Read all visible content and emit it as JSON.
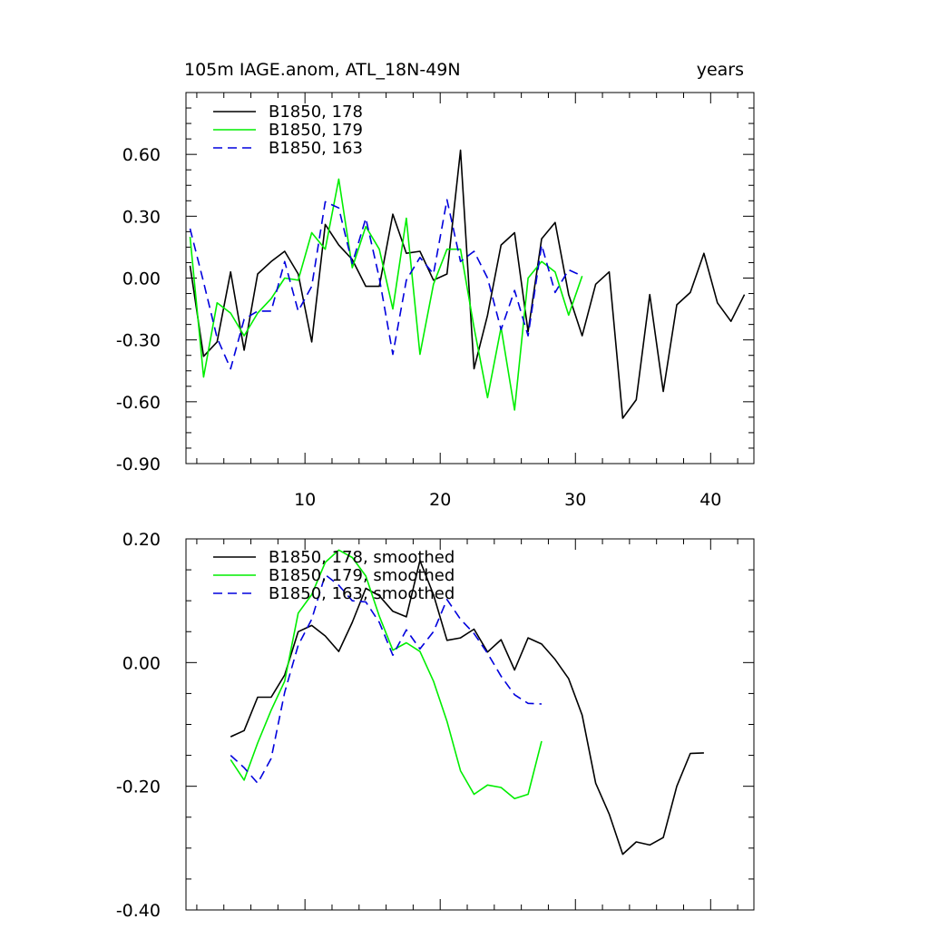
{
  "figure": {
    "title_left": "105m IAGE.anom, ATL_18N-49N",
    "title_right": "years"
  },
  "chart_data": [
    {
      "type": "line",
      "title": "105m IAGE.anom, ATL_18N-49N",
      "units_label": "years",
      "xlim": [
        1.2,
        43.2
      ],
      "ylim": [
        -0.9,
        0.9
      ],
      "x_ticks": [
        10,
        20,
        30,
        40
      ],
      "x_tick_labels": [
        "10",
        "20",
        "30",
        "40"
      ],
      "y_ticks": [
        -0.9,
        -0.6,
        -0.3,
        0.0,
        0.3,
        0.6
      ],
      "y_tick_labels": [
        "-0.90",
        "-0.60",
        "-0.30",
        "0.00",
        "0.30",
        "0.60"
      ],
      "legend_position": "top-left",
      "series": [
        {
          "name": "B1850, 178",
          "color": "#000000",
          "dash": "solid",
          "x": [
            1.5,
            2.5,
            3.5,
            4.5,
            5.5,
            6.5,
            7.5,
            8.5,
            9.5,
            10.5,
            11.5,
            12.5,
            13.5,
            14.5,
            15.5,
            16.5,
            17.5,
            18.5,
            19.5,
            20.5,
            21.5,
            22.5,
            23.5,
            24.5,
            25.5,
            26.5,
            27.5,
            28.5,
            29.5,
            30.5,
            31.5,
            32.5,
            33.5,
            34.5,
            35.5,
            36.5,
            37.5,
            38.5,
            39.5,
            40.5,
            41.5,
            42.5
          ],
          "y": [
            0.06,
            -0.38,
            -0.31,
            0.03,
            -0.35,
            0.02,
            0.08,
            0.13,
            0.02,
            -0.31,
            0.26,
            0.16,
            0.09,
            -0.04,
            -0.04,
            0.31,
            0.12,
            0.13,
            -0.01,
            0.02,
            0.62,
            -0.44,
            -0.18,
            0.16,
            0.22,
            -0.26,
            0.19,
            0.27,
            -0.08,
            -0.28,
            -0.03,
            0.03,
            -0.68,
            -0.59,
            -0.08,
            -0.55,
            -0.13,
            -0.07,
            0.12,
            -0.12,
            -0.21,
            -0.08
          ]
        },
        {
          "name": "B1850, 179",
          "color": "#00ee00",
          "dash": "solid",
          "x": [
            1.5,
            2.5,
            3.5,
            4.5,
            5.5,
            6.5,
            7.5,
            8.5,
            9.5,
            10.5,
            11.5,
            12.5,
            13.5,
            14.5,
            15.5,
            16.5,
            17.5,
            18.5,
            19.5,
            20.5,
            21.5,
            22.5,
            23.5,
            24.5,
            25.5,
            26.5,
            27.5,
            28.5,
            29.5,
            30.5
          ],
          "y": [
            0.2,
            -0.48,
            -0.12,
            -0.17,
            -0.28,
            -0.17,
            -0.1,
            0.0,
            -0.01,
            0.22,
            0.14,
            0.48,
            0.05,
            0.25,
            0.14,
            -0.15,
            0.29,
            -0.37,
            -0.03,
            0.14,
            0.14,
            -0.24,
            -0.58,
            -0.24,
            -0.64,
            0.0,
            0.08,
            0.03,
            -0.18,
            0.01
          ]
        },
        {
          "name": "B1850, 163",
          "color": "#0000dd",
          "dash": "dashed",
          "x": [
            1.5,
            2.5,
            3.5,
            4.5,
            5.5,
            6.5,
            7.5,
            8.5,
            9.5,
            10.5,
            11.5,
            12.5,
            13.5,
            14.5,
            15.5,
            16.5,
            17.5,
            18.5,
            19.5,
            20.5,
            21.5,
            22.5,
            23.5,
            24.5,
            25.5,
            26.5,
            27.5,
            28.5,
            29.5,
            30.5
          ],
          "y": [
            0.24,
            -0.02,
            -0.29,
            -0.44,
            -0.2,
            -0.16,
            -0.16,
            0.08,
            -0.16,
            -0.04,
            0.37,
            0.34,
            0.07,
            0.29,
            0.0,
            -0.37,
            -0.01,
            0.1,
            0.02,
            0.38,
            0.08,
            0.13,
            0.0,
            -0.25,
            -0.06,
            -0.28,
            0.16,
            -0.07,
            0.04,
            0.01
          ]
        }
      ]
    },
    {
      "type": "line",
      "xlim": [
        1.2,
        43.2
      ],
      "ylim": [
        -0.4,
        0.2
      ],
      "y_ticks": [
        -0.4,
        -0.2,
        0.0,
        0.2
      ],
      "y_tick_labels": [
        "-0.40",
        "-0.20",
        "0.00",
        "0.20"
      ],
      "legend_position": "top-left",
      "series": [
        {
          "name": "B1850, 178, smoothed",
          "color": "#000000",
          "dash": "solid",
          "x": [
            4.5,
            5.5,
            6.5,
            7.5,
            8.5,
            9.5,
            10.5,
            11.5,
            12.5,
            13.5,
            14.5,
            15.5,
            16.5,
            17.5,
            18.5,
            19.5,
            20.5,
            21.5,
            22.5,
            23.5,
            24.5,
            25.5,
            26.5,
            27.5,
            28.5,
            29.5,
            30.5,
            31.5,
            32.5,
            33.5,
            34.5,
            35.5,
            36.5,
            37.5,
            38.5,
            39.5
          ],
          "y": [
            -0.12,
            -0.11,
            -0.056,
            -0.056,
            -0.02,
            0.05,
            0.06,
            0.043,
            0.018,
            0.065,
            0.12,
            0.108,
            0.083,
            0.074,
            0.165,
            0.11,
            0.036,
            0.04,
            0.054,
            0.017,
            0.037,
            -0.012,
            0.04,
            0.03,
            0.005,
            -0.026,
            -0.085,
            -0.195,
            -0.245,
            -0.31,
            -0.29,
            -0.295,
            -0.283,
            -0.2,
            -0.147,
            -0.146
          ]
        },
        {
          "name": "B1850, 179, smoothed",
          "color": "#00ee00",
          "dash": "solid",
          "x": [
            4.5,
            5.5,
            6.5,
            7.5,
            8.5,
            9.5,
            10.5,
            11.5,
            12.5,
            13.5,
            14.5,
            15.5,
            16.5,
            17.5,
            18.5,
            19.5,
            20.5,
            21.5,
            22.5,
            23.5,
            24.5,
            25.5,
            26.5,
            27.5
          ],
          "y": [
            -0.157,
            -0.19,
            -0.13,
            -0.077,
            -0.03,
            0.08,
            0.11,
            0.162,
            0.182,
            0.17,
            0.14,
            0.075,
            0.02,
            0.032,
            0.018,
            -0.03,
            -0.095,
            -0.175,
            -0.213,
            -0.198,
            -0.202,
            -0.22,
            -0.213,
            -0.127
          ]
        },
        {
          "name": "B1850, 163, smoothed",
          "color": "#0000dd",
          "dash": "dashed",
          "x": [
            4.5,
            5.5,
            6.5,
            7.5,
            8.5,
            9.5,
            10.5,
            11.5,
            12.5,
            13.5,
            14.5,
            15.5,
            16.5,
            17.5,
            18.5,
            19.5,
            20.5,
            21.5,
            22.5,
            23.5,
            24.5,
            25.5,
            26.5,
            27.5
          ],
          "y": [
            -0.15,
            -0.17,
            -0.195,
            -0.155,
            -0.048,
            0.028,
            0.07,
            0.142,
            0.125,
            0.1,
            0.098,
            0.065,
            0.012,
            0.053,
            0.022,
            0.05,
            0.102,
            0.07,
            0.047,
            0.015,
            -0.022,
            -0.052,
            -0.066,
            -0.067
          ]
        }
      ]
    }
  ]
}
